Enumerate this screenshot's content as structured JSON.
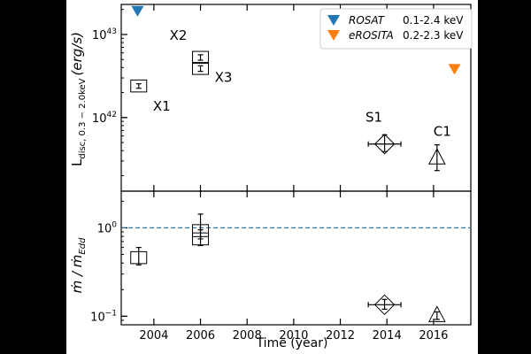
{
  "colors": {
    "rosat": "#1f77b4",
    "erosita": "#ff7f0e",
    "eddington_line": "#1f6f9f",
    "marker": "#000000"
  },
  "chart_data": [
    {
      "id": "top-panel",
      "type": "scatter",
      "ylabel_main": "L",
      "ylabel_sub": "disc, 0.3 − 2.0keV",
      "ylabel_unit": "(erg/s)",
      "yscale": "log",
      "xlim": [
        2002.6,
        2017.6
      ],
      "ylim": [
        1.3e+41,
        2.3e+43
      ],
      "yticks": [
        {
          "value": 1e+42,
          "base": "10",
          "exp": "42"
        },
        {
          "value": 1e+43,
          "base": "10",
          "exp": "43"
        }
      ],
      "points": [
        {
          "label": "X1",
          "x": 2003.35,
          "y": 2.4e+42,
          "yerr_lo": 1.5e+41,
          "yerr_hi": 1.5e+41,
          "marker": "square"
        },
        {
          "label": "X2",
          "x": 2006.0,
          "y": 5.3e+42,
          "yerr_lo": 4e+41,
          "yerr_hi": 4e+41,
          "marker": "square"
        },
        {
          "label": "X3",
          "x": 2006.0,
          "y": 3.9e+42,
          "yerr_lo": 3e+41,
          "yerr_hi": 3e+41,
          "marker": "square"
        },
        {
          "label": "S1",
          "x": 2013.9,
          "y": 4.8e+41,
          "yerr_lo": 9e+40,
          "yerr_hi": 1.4e+41,
          "xerr": 0.7,
          "marker": "diamond"
        },
        {
          "label": "C1",
          "x": 2016.15,
          "y": 3.2e+41,
          "yerr_lo": 9e+40,
          "yerr_hi": 1.5e+41,
          "marker": "triangle"
        }
      ],
      "upper_limits": [
        {
          "series": "ROSAT",
          "x": 2003.3,
          "y": 1.9e+43
        },
        {
          "series": "eROSITA",
          "x": 2016.9,
          "y": 3.8e+42
        }
      ],
      "legend": {
        "position": "top-right",
        "entries": [
          {
            "name": "ROSAT",
            "band": "0.1-2.4 keV",
            "color_key": "rosat"
          },
          {
            "name": "eROSITA",
            "band": "0.2-2.3 keV",
            "color_key": "erosita"
          }
        ]
      }
    },
    {
      "id": "bottom-panel",
      "type": "scatter",
      "ylabel": "ṁ / ṁ",
      "ylabel_sub": "Edd",
      "xlabel": "Time (year)",
      "yscale": "log",
      "xlim": [
        2002.6,
        2017.6
      ],
      "ylim": [
        0.08,
        2.6
      ],
      "xticks": [
        2004,
        2006,
        2008,
        2010,
        2012,
        2014,
        2016
      ],
      "yticks": [
        {
          "value": 0.1,
          "base": "10",
          "exp": "−1"
        },
        {
          "value": 1,
          "base": "10",
          "exp": "0"
        }
      ],
      "hline": 1.0,
      "points": [
        {
          "x": 2003.35,
          "y": 0.46,
          "yerr_lo": 0.08,
          "yerr_hi": 0.14,
          "marker": "square"
        },
        {
          "x": 2006.0,
          "y": 0.93,
          "yerr_lo": 0.18,
          "yerr_hi": 0.5,
          "marker": "square"
        },
        {
          "x": 2006.0,
          "y": 0.75,
          "yerr_lo": 0.12,
          "yerr_hi": 0.2,
          "marker": "square"
        },
        {
          "x": 2013.9,
          "y": 0.135,
          "yerr_lo": 0.015,
          "yerr_hi": 0.02,
          "xerr": 0.7,
          "marker": "diamond"
        },
        {
          "x": 2016.15,
          "y": 0.1,
          "yerr_lo": 0.008,
          "yerr_hi": 0.012,
          "marker": "triangle"
        }
      ]
    }
  ]
}
